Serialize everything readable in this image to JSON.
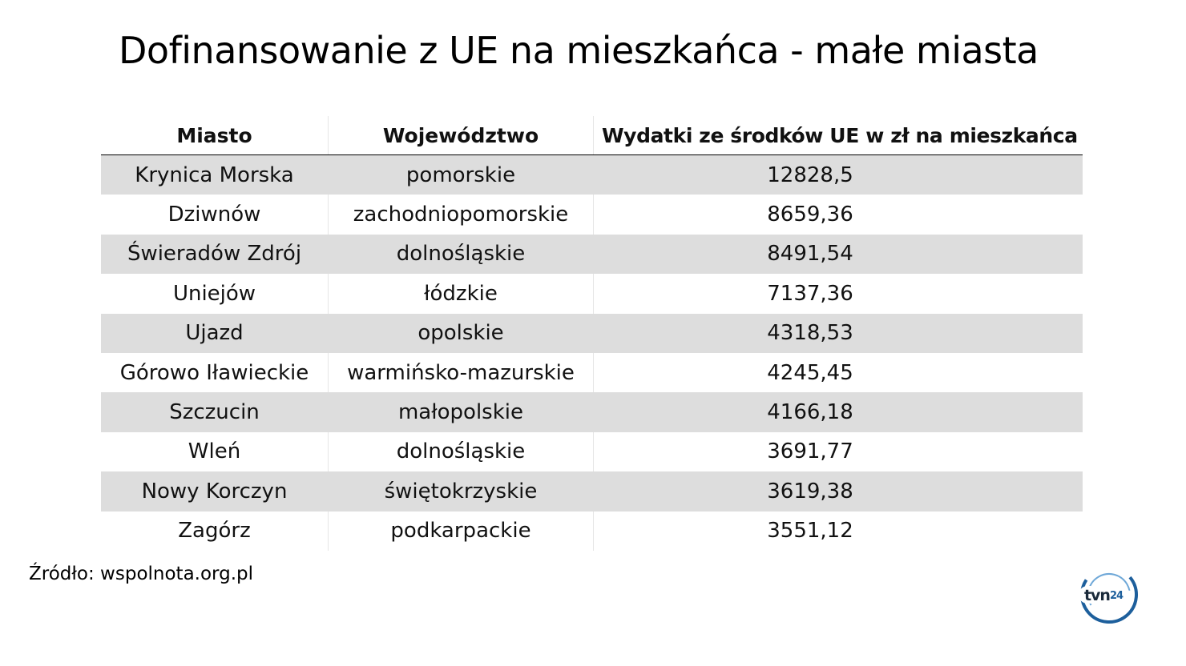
{
  "title": "Dofinansowanie z UE na mieszkańca - małe miasta",
  "source": "Źródło: wspolnota.org.pl",
  "logo": {
    "text": "tvn24",
    "icon": "tvn24-logo"
  },
  "colors": {
    "shaded_row": "#dddddd",
    "text": "#111111",
    "logo_blue": "#1d5f9c"
  },
  "chart_data": {
    "type": "table",
    "title": "Dofinansowanie z UE na mieszkańca - małe miasta",
    "columns": [
      "Miasto",
      "Województwo",
      "Wydatki ze środków UE w zł na mieszkańca"
    ],
    "rows": [
      [
        "Krynica Morska",
        "pomorskie",
        "12828,5"
      ],
      [
        "Dziwnów",
        "zachodniopomorskie",
        "8659,36"
      ],
      [
        "Świeradów Zdrój",
        "dolnośląskie",
        "8491,54"
      ],
      [
        "Uniejów",
        "łódzkie",
        "7137,36"
      ],
      [
        "Ujazd",
        "opolskie",
        "4318,53"
      ],
      [
        "Górowo Iławieckie",
        "warmińsko-mazurskie",
        "4245,45"
      ],
      [
        "Szczucin",
        "małopolskie",
        "4166,18"
      ],
      [
        "Wleń",
        "dolnośląskie",
        "3691,77"
      ],
      [
        "Nowy Korczyn",
        "świętokrzyskie",
        "3619,38"
      ],
      [
        "Zagórz",
        "podkarpackie",
        "3551,12"
      ]
    ]
  }
}
